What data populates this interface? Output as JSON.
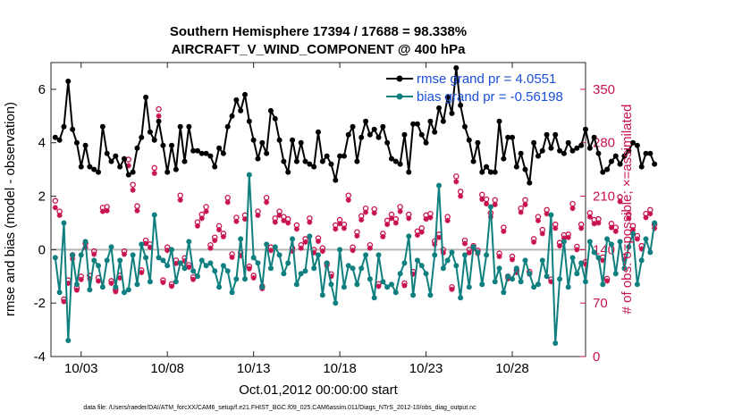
{
  "chart_data": {
    "type": "line",
    "title_line1": "Southern Hemisphere 17394 / 17688 = 98.338%",
    "title_line2": "AIRCRAFT_V_WIND_COMPONENT @ 400 hPa",
    "xlabel": "Oct.01,2012 00:00:00 start",
    "ylabel_left": "rmse and bias (model - observation)",
    "ylabel_right": "# of obs: o=possible; ×=assimilated",
    "footer": "data file: /Users/raeder/DAI/ATM_forcXX/CAM6_setup/f.e21.FHIST_BGC.f09_025.CAM6assim.011/Diags_NTrS_2012-10/obs_diag_output.nc",
    "x_ticks": [
      "10/03",
      "10/08",
      "10/13",
      "10/18",
      "10/23",
      "10/28"
    ],
    "x_tick_days": [
      3,
      8,
      13,
      18,
      23,
      28
    ],
    "xlim": [
      1.25,
      32.25
    ],
    "ylim_left": [
      -4,
      7
    ],
    "y_ticks_left": [
      "-4",
      "-2",
      "0",
      "2",
      "4",
      "6"
    ],
    "ylim_right": [
      0,
      385
    ],
    "y_ticks_right": [
      "0",
      "70",
      "140",
      "210",
      "280",
      "350"
    ],
    "colors": {
      "rmse": "#000000",
      "bias": "#0f7f7f",
      "obs": "#c8124e",
      "zero_line": "#b4b4b4",
      "legend_text": "#1a4fd8"
    },
    "series": [
      {
        "name": "rmse",
        "legend_label": "rmse grand pr = 4.0551",
        "values": [
          4.2,
          4.1,
          4.6,
          6.3,
          4.5,
          4.0,
          3.1,
          3.9,
          3.1,
          3.0,
          2.9,
          4.6,
          3.6,
          3.3,
          3.5,
          3.1,
          3.4,
          2.8,
          2.9,
          3.8,
          4.2,
          5.7,
          4.4,
          4.1,
          4.8,
          3.9,
          2.9,
          3.9,
          3.0,
          4.6,
          3.3,
          4.6,
          3.7,
          3.7,
          3.6,
          3.6,
          3.5,
          3.1,
          3.8,
          3.6,
          4.6,
          5.0,
          5.6,
          5.2,
          5.8,
          4.8,
          4.1,
          3.4,
          4.0,
          3.6,
          5.2,
          4.9,
          4.1,
          3.3,
          2.9,
          4.1,
          3.3,
          4.0,
          3.3,
          3.2,
          3.1,
          4.4,
          3.3,
          3.5,
          3.2,
          2.6,
          3.5,
          3.5,
          4.3,
          4.6,
          3.3,
          4.2,
          4.8,
          4.3,
          4.5,
          4.2,
          4.6,
          4.0,
          3.4,
          3.3,
          3.2,
          4.3,
          2.9,
          4.7,
          4.7,
          4.3,
          4.0,
          4.8,
          4.4,
          5.3,
          4.8,
          5.7,
          5.1,
          6.8,
          5.4,
          4.6,
          4.1,
          3.3,
          4.0,
          2.9,
          3.1,
          2.9,
          2.9,
          4.8,
          3.4,
          4.2,
          4.2,
          3.1,
          3.6,
          3.0,
          2.5,
          4.0,
          3.5,
          3.7,
          4.3,
          3.8,
          4.3,
          3.7,
          3.6,
          4.0,
          3.7,
          3.8,
          3.9,
          4.5,
          3.8,
          4.2,
          3.6,
          2.9,
          3.0,
          3.3,
          3.5,
          3.2,
          3.5,
          3.7,
          4.0,
          3.9,
          3.1,
          3.6,
          3.6,
          3.2
        ]
      },
      {
        "name": "bias",
        "legend_label": "bias grand pr = -0.56198",
        "values": [
          -0.3,
          -1.6,
          1.0,
          -3.4,
          -0.2,
          -1.3,
          -0.2,
          0.3,
          -1.5,
          -0.4,
          -0.6,
          -1.4,
          -0.4,
          0.1,
          -1.4,
          -0.4,
          -1.6,
          -1.5,
          -0.2,
          -1.3,
          0.2,
          -0.3,
          -1.2,
          1.3,
          -0.3,
          -0.4,
          -0.6,
          0.0,
          -1.2,
          -0.5,
          -0.7,
          0.3,
          -0.8,
          -1.0,
          -0.4,
          -0.6,
          -0.5,
          -0.8,
          -1.4,
          -0.6,
          -0.8,
          -1.6,
          -1.1,
          0.4,
          -1.1,
          2.8,
          -0.3,
          -0.5,
          -1.4,
          0.2,
          -0.7,
          0.1,
          -0.2,
          -0.9,
          -0.5,
          0.4,
          -1.3,
          -0.9,
          -0.8,
          0.5,
          -0.7,
          -0.2,
          -1.7,
          -0.5,
          -1.3,
          -2.0,
          0.0,
          -1.4,
          -0.6,
          -0.7,
          -1.3,
          -0.7,
          -0.2,
          -1.1,
          -1.8,
          -0.2,
          -1.2,
          -1.4,
          -1.3,
          -1.6,
          -0.9,
          -0.5,
          0.5,
          -1.7,
          -0.4,
          -0.6,
          -0.9,
          -1.7,
          -0.2,
          2.4,
          -0.7,
          -0.4,
          -0.1,
          -0.6,
          -1.8,
          -0.2,
          -1.4,
          0.1,
          -0.1,
          -1.3,
          -0.2,
          1.6,
          -1.2,
          -0.7,
          -1.6,
          -1.0,
          -1.1,
          -0.7,
          -1.2,
          -0.4,
          -0.9,
          -1.4,
          -1.3,
          -0.4,
          -1.0,
          1.3,
          -3.5,
          -1.1,
          0.3,
          -1.4,
          -0.3,
          -0.9,
          -0.5,
          -1.2,
          0.3,
          -0.1,
          -0.3,
          -1.3,
          0.4,
          0.2,
          -0.9,
          0.3,
          -0.7,
          0.1,
          0.6,
          -1.3,
          -0.4,
          0.4,
          -0.1,
          1.0
        ]
      },
      {
        "name": "obs_possible",
        "values": [
          204,
          190,
          75,
          100,
          133,
          90,
          105,
          148,
          106,
          138,
          103,
          195,
          196,
          99,
          88,
          106,
          138,
          258,
          225,
          197,
          113,
          152,
          147,
          247,
          324,
          100,
          143,
          95,
          126,
          211,
          129,
          120,
          104,
          176,
          186,
          196,
          146,
          156,
          171,
          161,
          208,
          134,
          182,
          136,
          185,
          118,
          106,
          190,
          92,
          208,
          143,
          181,
          190,
          183,
          180,
          142,
          172,
          146,
          154,
          181,
          140,
          155,
          142,
          122,
          108,
          172,
          179,
          173,
          211,
          143,
          163,
          184,
          194,
          146,
          193,
          95,
          161,
          178,
          186,
          180,
          196,
          96,
          186,
          111,
          164,
          168,
          185,
          187,
          151,
          160,
          140,
          183,
          91,
          236,
          216,
          152,
          140,
          145,
          139,
          212,
          206,
          188,
          205,
          135,
          169,
          105,
          131,
          113,
          194,
          205,
          111,
          154,
          183,
          166,
          192,
          101,
          173,
          149,
          159,
          160,
          200,
          144,
          173,
          124,
          188,
          179,
          180,
          130,
          102,
          174,
          169,
          209,
          131,
          186,
          171,
          158,
          145,
          187,
          192,
          173
        ]
      },
      {
        "name": "obs_assimilated",
        "values": [
          195,
          185,
          72,
          96,
          128,
          87,
          101,
          143,
          102,
          134,
          99,
          190,
          191,
          96,
          85,
          103,
          134,
          250,
          218,
          191,
          110,
          148,
          143,
          240,
          315,
          97,
          139,
          92,
          122,
          205,
          125,
          117,
          101,
          171,
          181,
          190,
          142,
          152,
          166,
          157,
          202,
          130,
          177,
          132,
          180,
          115,
          103,
          185,
          89,
          202,
          139,
          176,
          185,
          178,
          175,
          138,
          167,
          142,
          150,
          176,
          136,
          151,
          138,
          119,
          105,
          167,
          174,
          168,
          205,
          139,
          158,
          179,
          189,
          142,
          188,
          92,
          157,
          173,
          181,
          175,
          190,
          93,
          181,
          108,
          159,
          163,
          180,
          182,
          147,
          156,
          136,
          178,
          88,
          229,
          210,
          148,
          136,
          141,
          135,
          206,
          200,
          183,
          199,
          131,
          164,
          102,
          127,
          110,
          189,
          199,
          108,
          150,
          178,
          161,
          187,
          98,
          168,
          145,
          155,
          156,
          194,
          140,
          168,
          121,
          183,
          174,
          175,
          126,
          99,
          169,
          164,
          203,
          127,
          181,
          166,
          154,
          141,
          182,
          187,
          168
        ]
      }
    ]
  }
}
